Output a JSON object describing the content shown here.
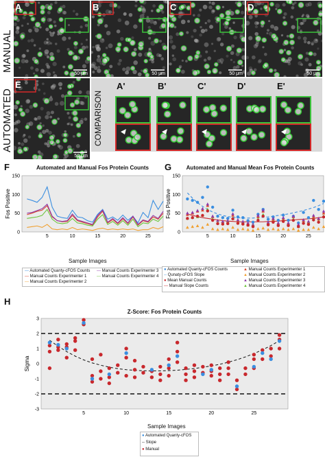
{
  "figure": {
    "row_label_manual": "MANUAL",
    "row_label_automated": "AUTOMATED",
    "row_label_comparison": "COMPARISON",
    "scale_bar": "50 μm",
    "panel_letters": [
      "A",
      "B",
      "C",
      "D",
      "E"
    ],
    "comparison_letters": [
      "A'",
      "B'",
      "C'",
      "D'",
      "E'"
    ],
    "chart_letters": [
      "F",
      "G",
      "H"
    ],
    "colors": {
      "box_red": "#d62828",
      "box_green": "#3cc43c",
      "cell_green": "#33cc33",
      "comparison_bg": "#d9d9d9"
    }
  },
  "chart_data": [
    {
      "type": "line",
      "title": "Automated and Manual Fos Protein Counts",
      "xlabel": "Sample Images",
      "ylabel": "Fos Positive",
      "xlim": [
        0,
        28
      ],
      "ylim": [
        0,
        150
      ],
      "xticks": [
        5,
        10,
        15,
        20,
        25
      ],
      "yticks": [
        0,
        50,
        100,
        150
      ],
      "grid": false,
      "legend_position": "bottom",
      "legend": [
        "Automated Quanty-cFOS Counts",
        "Manual Counts Experimenter 1",
        "Manual Counts Experimenter 2",
        "Manual Counts Experimenter 3",
        "Manual Counts Experimenter 4"
      ],
      "x": [
        1,
        2,
        3,
        4,
        5,
        6,
        7,
        8,
        9,
        10,
        11,
        12,
        13,
        14,
        15,
        16,
        17,
        18,
        19,
        20,
        21,
        22,
        23,
        24,
        25,
        26,
        27,
        28
      ],
      "series": [
        {
          "name": "Automated Quanty-cFOS Counts",
          "color": "#3a8ee0",
          "values": [
            88,
            84,
            79,
            92,
            120,
            66,
            42,
            38,
            36,
            58,
            40,
            38,
            30,
            26,
            47,
            60,
            34,
            40,
            31,
            45,
            31,
            42,
            24,
            52,
            38,
            84,
            60,
            82
          ]
        },
        {
          "name": "Manual Counts Experimenter 1",
          "color": "#d9432b",
          "values": [
            46,
            50,
            55,
            58,
            70,
            40,
            30,
            27,
            28,
            44,
            30,
            26,
            22,
            18,
            40,
            55,
            24,
            33,
            22,
            35,
            22,
            40,
            18,
            30,
            26,
            40,
            34,
            50
          ]
        },
        {
          "name": "Manual Counts Experimenter 2",
          "color": "#f0a030",
          "values": [
            12,
            14,
            16,
            12,
            20,
            8,
            6,
            8,
            6,
            12,
            6,
            8,
            6,
            4,
            8,
            10,
            6,
            8,
            6,
            8,
            6,
            8,
            4,
            6,
            6,
            12,
            8,
            14
          ]
        },
        {
          "name": "Manual Counts Experimenter 3",
          "color": "#8e3aa8",
          "values": [
            50,
            52,
            57,
            62,
            74,
            42,
            30,
            28,
            30,
            48,
            32,
            28,
            24,
            20,
            44,
            58,
            26,
            36,
            24,
            38,
            24,
            42,
            20,
            32,
            28,
            44,
            36,
            55
          ]
        },
        {
          "name": "Manual Counts Experimenter 4",
          "color": "#6cc43a",
          "values": [
            36,
            38,
            40,
            44,
            60,
            34,
            24,
            22,
            24,
            36,
            24,
            22,
            18,
            16,
            34,
            46,
            20,
            28,
            18,
            30,
            18,
            34,
            14,
            24,
            22,
            34,
            28,
            42
          ]
        }
      ]
    },
    {
      "type": "scatter",
      "title": "Automated and Manual Mean Fos Protein Counts",
      "xlabel": "Sample Images",
      "ylabel": "Fos Positive",
      "xlim": [
        0,
        28
      ],
      "ylim": [
        0,
        150
      ],
      "xticks": [
        5,
        10,
        15,
        20,
        25
      ],
      "yticks": [
        0,
        50,
        100,
        150
      ],
      "grid": false,
      "legend_position": "bottom",
      "legend": [
        "Automated Quanty-cFOS Counts",
        "Manual Counts Experimenter 1",
        "Qunaty-cFOS Slope",
        "Manual Counts Experimenter 2",
        "Mean Manual Counts",
        "Manual Counts Experimenter 3",
        "Manual Slope Counts",
        "Manual Counts Experimenter 4"
      ],
      "x": [
        1,
        2,
        3,
        4,
        5,
        6,
        7,
        8,
        9,
        10,
        11,
        12,
        13,
        14,
        15,
        16,
        17,
        18,
        19,
        20,
        21,
        22,
        23,
        24,
        25,
        26,
        27,
        28
      ],
      "series": [
        {
          "name": "Automated Quanty-cFOS Counts",
          "color": "#3a8ee0",
          "marker": "circle",
          "values": [
            88,
            84,
            79,
            92,
            120,
            66,
            42,
            38,
            36,
            58,
            40,
            38,
            30,
            26,
            47,
            60,
            34,
            40,
            31,
            45,
            31,
            42,
            24,
            52,
            38,
            84,
            60,
            82
          ]
        },
        {
          "name": "Manual Counts Experimenter 1",
          "color": "#d9432b",
          "marker": "triangle",
          "values": [
            46,
            50,
            55,
            58,
            70,
            40,
            30,
            27,
            28,
            44,
            30,
            26,
            22,
            18,
            40,
            55,
            24,
            33,
            22,
            35,
            22,
            40,
            18,
            30,
            26,
            40,
            34,
            50
          ]
        },
        {
          "name": "Manual Counts Experimenter 2",
          "color": "#f0a030",
          "marker": "triangle",
          "values": [
            12,
            14,
            16,
            12,
            20,
            8,
            6,
            8,
            6,
            12,
            6,
            8,
            6,
            4,
            8,
            10,
            6,
            8,
            6,
            8,
            6,
            8,
            4,
            6,
            6,
            12,
            8,
            14
          ]
        },
        {
          "name": "Manual Counts Experimenter 3",
          "color": "#8e3aa8",
          "marker": "triangle",
          "values": [
            50,
            52,
            57,
            62,
            74,
            42,
            30,
            28,
            30,
            48,
            32,
            28,
            24,
            20,
            44,
            58,
            26,
            36,
            24,
            38,
            24,
            42,
            20,
            32,
            28,
            44,
            36,
            55
          ]
        },
        {
          "name": "Manual Counts Experimenter 4",
          "color": "#6cc43a",
          "marker": "triangle",
          "values": [
            36,
            38,
            40,
            44,
            60,
            34,
            24,
            22,
            24,
            36,
            24,
            22,
            18,
            16,
            34,
            46,
            20,
            28,
            18,
            30,
            18,
            34,
            14,
            24,
            22,
            34,
            28,
            42
          ]
        },
        {
          "name": "Mean Manual Counts",
          "color": "#c8282d",
          "marker": "circle",
          "values": [
            36,
            38,
            42,
            44,
            56,
            31,
            22,
            21,
            22,
            35,
            23,
            21,
            18,
            14,
            31,
            42,
            19,
            26,
            17,
            28,
            17,
            31,
            14,
            23,
            20,
            32,
            26,
            40
          ]
        }
      ],
      "trend_lines": [
        {
          "name": "Qunaty-cFOS Slope",
          "color": "#3a8ee0",
          "style": "dashed",
          "values": [
            104,
            90,
            78,
            68,
            60,
            53,
            48,
            44,
            41,
            39,
            38,
            37,
            37,
            37,
            38,
            39,
            40,
            42,
            44,
            46,
            48,
            51,
            54,
            57,
            61,
            65,
            70,
            76
          ]
        },
        {
          "name": "Manual Slope Counts",
          "color": "#c8282d",
          "style": "solid",
          "values": [
            48,
            44,
            41,
            38,
            36,
            34,
            32,
            30,
            29,
            28,
            27,
            27,
            27,
            27,
            27,
            27,
            28,
            28,
            29,
            30,
            31,
            32,
            33,
            34,
            35,
            36,
            38,
            40
          ]
        }
      ]
    },
    {
      "type": "scatter",
      "title": "Z-Score: Fos Protein Counts",
      "xlabel": "Sample Images",
      "ylabel": "Sigma",
      "xlim": [
        0,
        29
      ],
      "ylim": [
        -3,
        3
      ],
      "xticks": [
        5,
        10,
        15,
        20,
        25
      ],
      "yticks": [
        -3,
        -2,
        -1,
        0,
        1,
        2,
        3
      ],
      "reference_lines": [
        2,
        -2
      ],
      "grid": false,
      "legend_position": "bottom-left",
      "legend": [
        "Automated Quanty-cFOS",
        "Slope",
        "Manual"
      ],
      "series": [
        {
          "name": "Automated Quanty-cFOS",
          "color": "#3a8ee0",
          "points": [
            [
              1,
              1.4
            ],
            [
              2,
              1.25
            ],
            [
              3,
              1.0
            ],
            [
              5,
              2.7
            ],
            [
              6,
              -1.0
            ],
            [
              8,
              -0.7
            ],
            [
              10,
              0.7
            ],
            [
              13,
              -0.4
            ],
            [
              15,
              -0.1
            ],
            [
              16,
              0.5
            ],
            [
              19,
              -0.7
            ],
            [
              20,
              -0.4
            ],
            [
              23,
              -1.5
            ],
            [
              25,
              -0.2
            ],
            [
              26,
              0.7
            ],
            [
              27,
              0.3
            ],
            [
              28,
              1.5
            ]
          ]
        },
        {
          "name": "Manual",
          "color": "#c8282d",
          "points": [
            [
              1,
              1.2
            ],
            [
              1,
              0.8
            ],
            [
              1,
              -0.3
            ],
            [
              2,
              1.1
            ],
            [
              2,
              0.9
            ],
            [
              2,
              1.6
            ],
            [
              3,
              1.3
            ],
            [
              3,
              1.1
            ],
            [
              3,
              0.4
            ],
            [
              4,
              1.7
            ],
            [
              4,
              1.5
            ],
            [
              4,
              0.9
            ],
            [
              5,
              2.9
            ],
            [
              5,
              2.6
            ],
            [
              6,
              0.3
            ],
            [
              6,
              -0.8
            ],
            [
              6,
              -1.2
            ],
            [
              7,
              0.6
            ],
            [
              7,
              -0.5
            ],
            [
              7,
              -1.0
            ],
            [
              8,
              -0.3
            ],
            [
              8,
              -0.9
            ],
            [
              8,
              -1.3
            ],
            [
              9,
              -0.1
            ],
            [
              9,
              -0.6
            ],
            [
              10,
              1.0
            ],
            [
              10,
              0.4
            ],
            [
              10,
              -0.8
            ],
            [
              11,
              0.2
            ],
            [
              11,
              -0.4
            ],
            [
              11,
              -0.9
            ],
            [
              12,
              -0.2
            ],
            [
              12,
              -0.6
            ],
            [
              13,
              -0.5
            ],
            [
              13,
              -0.9
            ],
            [
              14,
              -0.2
            ],
            [
              14,
              -0.7
            ],
            [
              14,
              -1.1
            ],
            [
              15,
              0.3
            ],
            [
              15,
              -0.3
            ],
            [
              15,
              -0.8
            ],
            [
              16,
              1.4
            ],
            [
              16,
              0.8
            ],
            [
              16,
              0.1
            ],
            [
              17,
              -0.3
            ],
            [
              17,
              -0.7
            ],
            [
              17,
              -1.1
            ],
            [
              18,
              -0.1
            ],
            [
              18,
              -0.5
            ],
            [
              18,
              -0.9
            ],
            [
              19,
              -0.2
            ],
            [
              19,
              -0.6
            ],
            [
              20,
              -0.1
            ],
            [
              20,
              -0.5
            ],
            [
              20,
              -0.8
            ],
            [
              21,
              -0.3
            ],
            [
              21,
              -0.7
            ],
            [
              21,
              -1.1
            ],
            [
              22,
              0.1
            ],
            [
              22,
              -0.3
            ],
            [
              22,
              -0.7
            ],
            [
              23,
              -1.1
            ],
            [
              23,
              -1.7
            ],
            [
              24,
              -0.3
            ],
            [
              24,
              -0.7
            ],
            [
              25,
              0.6
            ],
            [
              25,
              0.3
            ],
            [
              25,
              -0.3
            ],
            [
              26,
              0.9
            ],
            [
              26,
              0.3
            ],
            [
              27,
              1.0
            ],
            [
              27,
              0.5
            ],
            [
              28,
              1.9
            ],
            [
              28,
              1.6
            ],
            [
              28,
              1.0
            ]
          ]
        }
      ],
      "trend_lines": [
        {
          "name": "Slope",
          "color": "#111111",
          "style": "dashed",
          "values": [
            1.55,
            1.15,
            0.8,
            0.5,
            0.25,
            0.05,
            -0.1,
            -0.23,
            -0.33,
            -0.4,
            -0.44,
            -0.47,
            -0.48,
            -0.48,
            -0.46,
            -0.43,
            -0.38,
            -0.32,
            -0.24,
            -0.15,
            -0.04,
            0.1,
            0.26,
            0.45,
            0.67,
            0.92,
            1.2,
            1.52
          ]
        }
      ]
    }
  ]
}
